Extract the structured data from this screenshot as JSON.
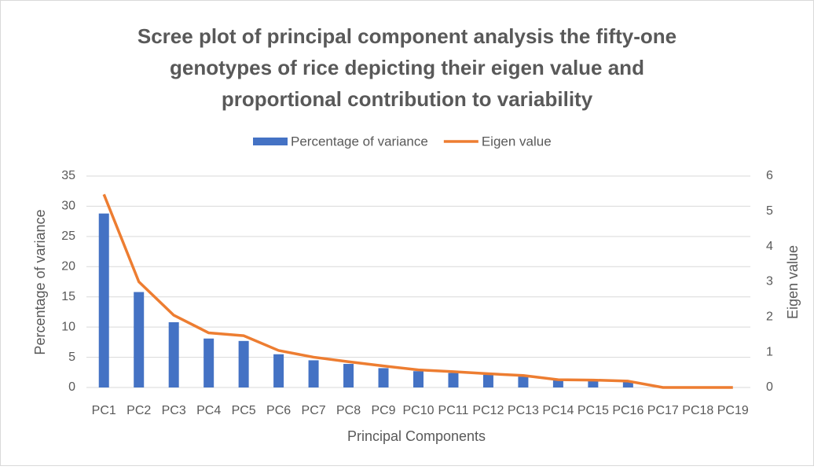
{
  "chart_data": {
    "type": "bar_line",
    "title": [
      "Scree plot of principal component analysis the fifty-one",
      "genotypes of rice depicting their eigen value and",
      "proportional contribution to variability"
    ],
    "x_label": "Principal Components",
    "y_label": "Percentage of variance",
    "y2_label": "Eigen value",
    "categories": [
      "PC1",
      "PC2",
      "PC3",
      "PC4",
      "PC5",
      "PC6",
      "PC7",
      "PC8",
      "PC9",
      "PC10",
      "PC11",
      "PC12",
      "PC13",
      "PC14",
      "PC15",
      "PC16",
      "PC17",
      "PC18",
      "PC19"
    ],
    "series": [
      {
        "name": "Percentage of variance",
        "type": "bar",
        "color": "#4472c4",
        "values": [
          28.8,
          15.8,
          10.8,
          8.1,
          7.7,
          5.5,
          4.5,
          3.9,
          3.2,
          2.7,
          2.4,
          2.1,
          1.8,
          1.2,
          1.1,
          1.0,
          0,
          0,
          0
        ]
      },
      {
        "name": "Eigen value",
        "type": "line",
        "axis": "y2",
        "color": "#ed7d31",
        "values": [
          5.48,
          3.0,
          2.05,
          1.55,
          1.47,
          1.05,
          0.86,
          0.73,
          0.61,
          0.5,
          0.45,
          0.39,
          0.34,
          0.22,
          0.21,
          0.18,
          0,
          0,
          0
        ]
      }
    ],
    "ylim": [
      0,
      35
    ],
    "yticks": [
      0,
      5,
      10,
      15,
      20,
      25,
      30,
      35
    ],
    "y2lim": [
      0,
      6
    ],
    "y2ticks": [
      0,
      1,
      2,
      3,
      4,
      5,
      6
    ],
    "grid": true,
    "legend": "top"
  }
}
